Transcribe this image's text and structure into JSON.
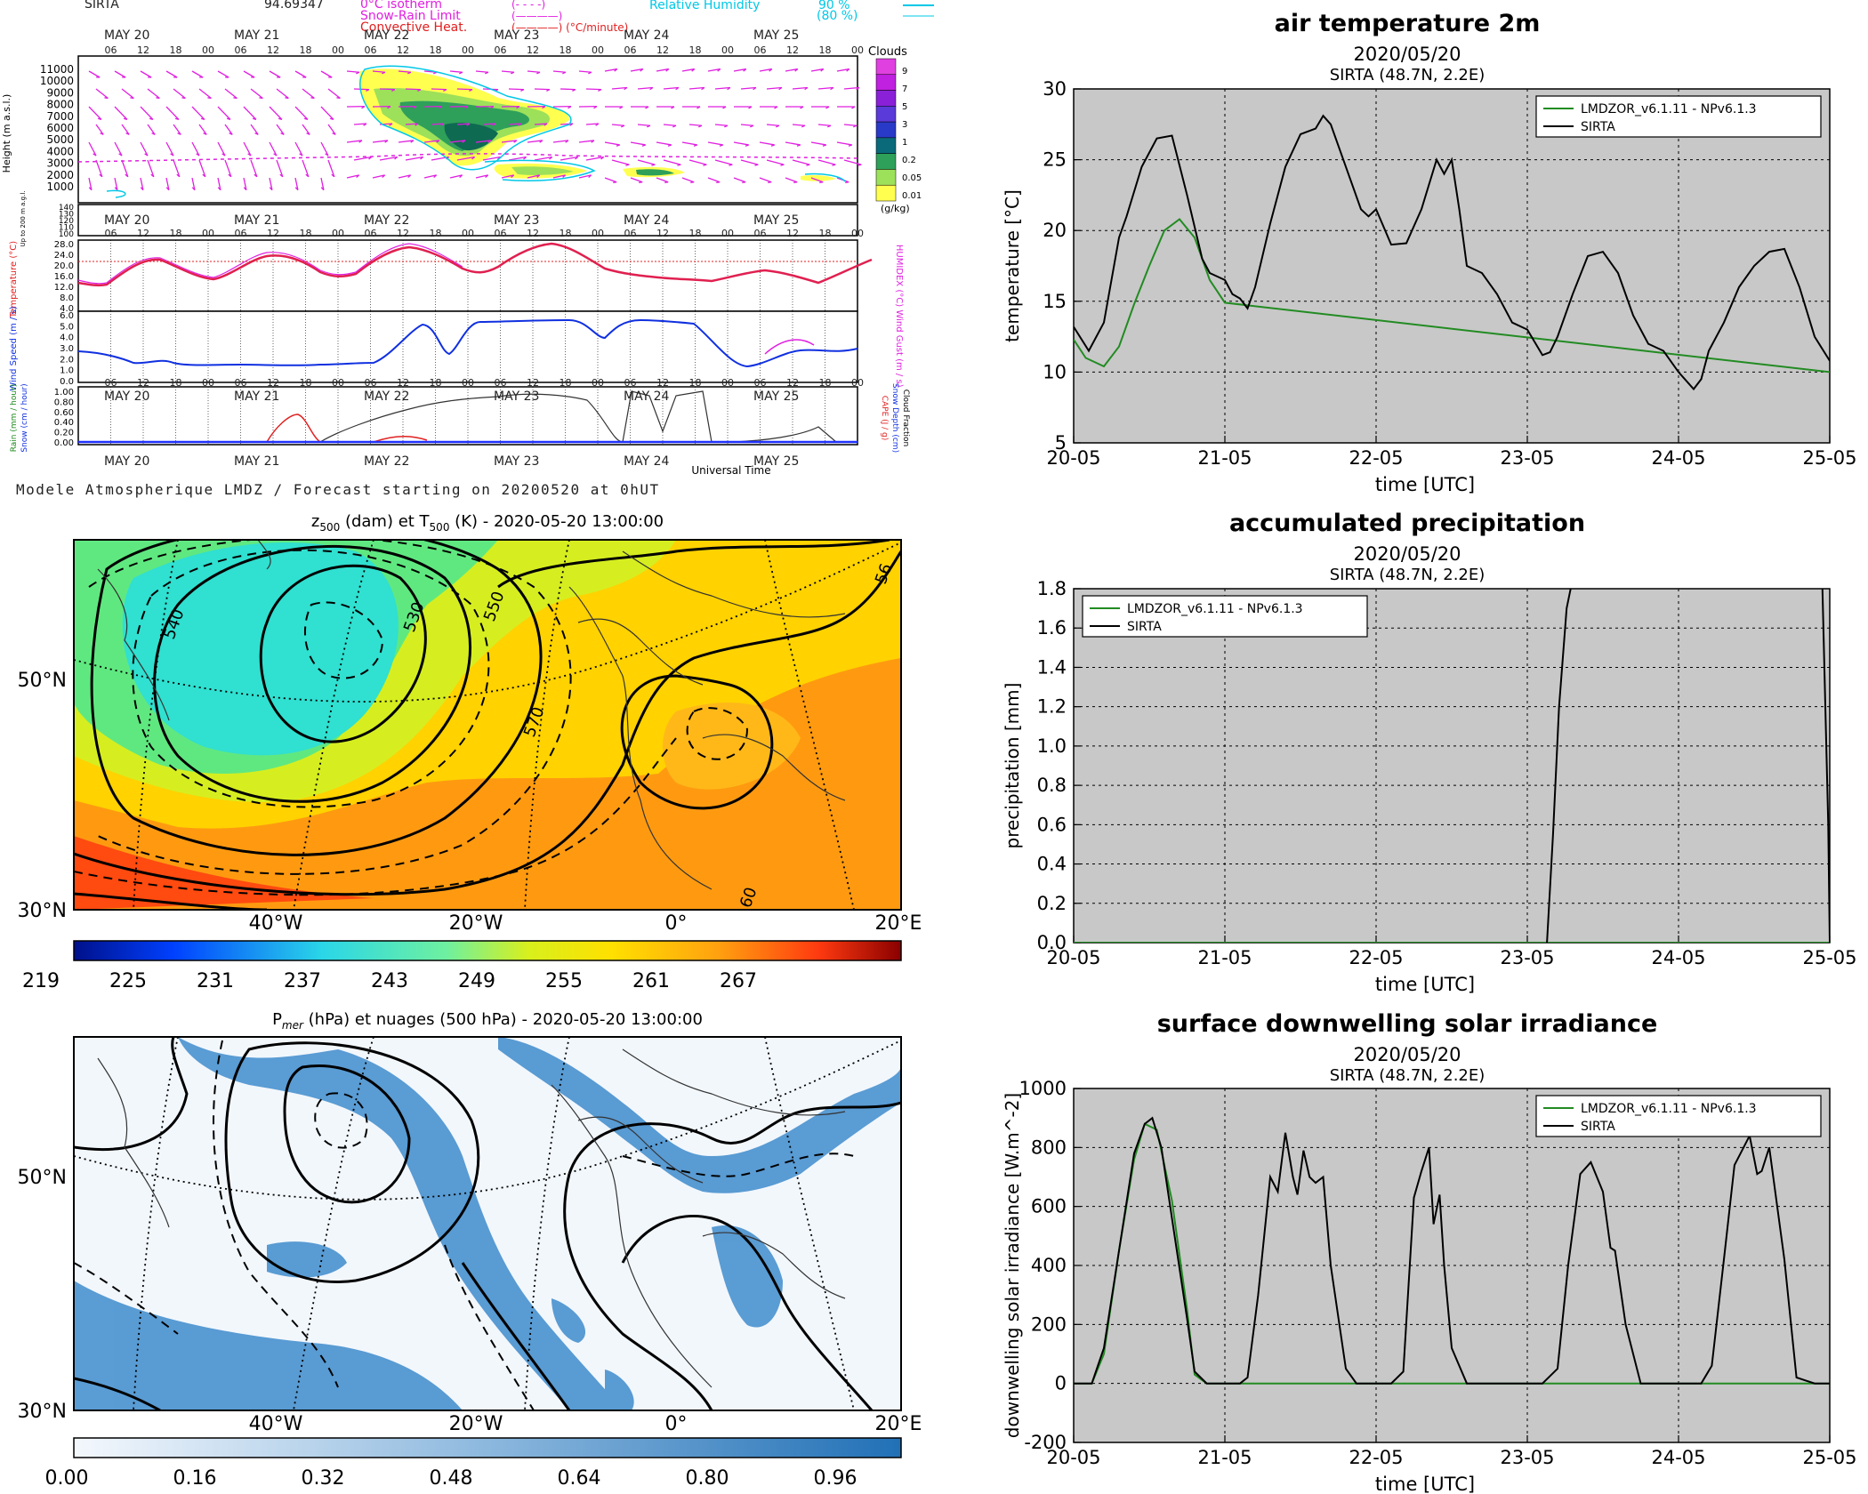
{
  "meteogram": {
    "station": "SIRTA",
    "station_value": "94.69347",
    "legend_left": [
      {
        "label": "0°C isotherm",
        "sample": "(- - - -)",
        "color": "#e020e0"
      },
      {
        "label": "Snow-Rain Limit",
        "sample": "(————)",
        "color": "#e020e0"
      },
      {
        "label": "Convective Heat.",
        "sample": "(————) (°C/minute)",
        "color": "#e02020"
      }
    ],
    "legend_right": [
      {
        "label": "Relative Humidity",
        "value1": "90 %",
        "value2": "(80 %)",
        "color": "#00c8e6"
      }
    ],
    "day_labels": [
      "MAY 20",
      "MAY 21",
      "MAY 22",
      "MAY 23",
      "MAY 24",
      "MAY 25"
    ],
    "hour_labels": [
      "06",
      "12",
      "18",
      "00"
    ],
    "height_axis_label": "Height (m a.s.l.)",
    "height_ticks": [
      "11000",
      "10000",
      "9000",
      "8000",
      "7000",
      "6000",
      "5000",
      "4000",
      "3000",
      "2000",
      "1000"
    ],
    "low_axis_label": "Up to 200 m a.g.l.",
    "low_ticks": [
      "140",
      "130",
      "120",
      "110",
      "100"
    ],
    "clouds_label": "Clouds",
    "cloud_scale": [
      "9",
      "7",
      "5",
      "3",
      "1",
      "0.2",
      "0.05",
      "0.01"
    ],
    "cloud_unit": "(g/kg)",
    "temp_axis_label": "Temperature (°C)",
    "temp_right_label": "HUMIDEX (°C)",
    "temp_ticks": [
      "28.0",
      "24.0",
      "20.0",
      "16.0",
      "12.0",
      "8.0",
      "4.0"
    ],
    "wind_axis_label": "Wind Speed (m / s)",
    "wind_right_label": "Wind Gust (m / s)",
    "wind_ticks": [
      "6.0",
      "5.0",
      "4.0",
      "3.0",
      "2.0",
      "1.0",
      "0.0"
    ],
    "rain_axis_label": "Rain (mm / hour)",
    "snow_axis_label": "Snow (cm / hour)",
    "rain_right_labels": [
      "CAPE (J / g)",
      "Snow Depth (cm)",
      "Cloud Fraction"
    ],
    "rain_ticks": [
      "1.00",
      "0.80",
      "0.60",
      "0.40",
      "0.20",
      "0.00"
    ],
    "x_axis_label": "Universal Time",
    "caption": "Modele Atmospherique LMDZ / Forecast starting on 20200520 at 0hUT"
  },
  "map_z500": {
    "title_prefix": "z",
    "title_sub": "500",
    "title_mid": " (dam) et T",
    "title_sub2": "500",
    "title_suffix": " (K) - 2020-05-20 13:00:00",
    "lat_labels": [
      "50°N",
      "30°N"
    ],
    "lon_labels": [
      "40°W",
      "20°W",
      "0°",
      "20°E"
    ],
    "contour_labels": [
      "540",
      "530",
      "550",
      "570",
      "56",
      "60"
    ],
    "colorbar_ticks": [
      "219",
      "225",
      "231",
      "237",
      "243",
      "249",
      "255",
      "261",
      "267"
    ]
  },
  "map_pmer": {
    "title_prefix": "P",
    "title_sub": "mer",
    "title_suffix": " (hPa) et nuages (500 hPa) - 2020-05-20 13:00:00",
    "lat_labels": [
      "50°N",
      "30°N"
    ],
    "lon_labels": [
      "40°W",
      "20°W",
      "0°",
      "20°E"
    ],
    "colorbar_ticks": [
      "0.00",
      "0.16",
      "0.32",
      "0.48",
      "0.64",
      "0.80",
      "0.96"
    ]
  },
  "chart_data": [
    {
      "type": "line",
      "title": "air temperature 2m",
      "subtitle1": "2020/05/20",
      "subtitle2": "SIRTA (48.7N, 2.2E)",
      "xlabel": "time [UTC]",
      "ylabel": "temperature [°C]",
      "x_ticks": [
        "20-05",
        "21-05",
        "22-05",
        "23-05",
        "24-05",
        "25-05"
      ],
      "xlim": [
        0,
        5
      ],
      "ylim": [
        5,
        30
      ],
      "y_ticks": [
        "5",
        "10",
        "15",
        "20",
        "25",
        "30"
      ],
      "grid": true,
      "legend_position": "top-right",
      "series": [
        {
          "name": "LMDZOR_v6.1.11 - NPv6.1.3",
          "color": "#228b22",
          "x": [
            0,
            0.08,
            0.2,
            0.3,
            0.4,
            0.5,
            0.6,
            0.7,
            0.8,
            0.9,
            1.0,
            5.0
          ],
          "y": [
            12.3,
            11.0,
            10.4,
            11.8,
            14.8,
            17.5,
            20.0,
            20.8,
            19.5,
            16.5,
            14.9,
            10.0
          ]
        },
        {
          "name": "SIRTA",
          "color": "#000000",
          "x": [
            0,
            0.1,
            0.2,
            0.3,
            0.35,
            0.45,
            0.55,
            0.65,
            0.75,
            0.85,
            0.9,
            1.0,
            1.05,
            1.1,
            1.15,
            1.2,
            1.3,
            1.4,
            1.5,
            1.6,
            1.65,
            1.7,
            1.8,
            1.9,
            1.95,
            2.0,
            2.1,
            2.2,
            2.3,
            2.4,
            2.45,
            2.5,
            2.55,
            2.6,
            2.7,
            2.8,
            2.9,
            3.0,
            3.1,
            3.15,
            3.2,
            3.3,
            3.4,
            3.5,
            3.6,
            3.7,
            3.8,
            3.9,
            4.0,
            4.1,
            4.15,
            4.2,
            4.3,
            4.4,
            4.5,
            4.6,
            4.7,
            4.8,
            4.9,
            5.0
          ],
          "y": [
            13.2,
            11.5,
            13.5,
            19.5,
            21.0,
            24.5,
            26.5,
            26.7,
            22.5,
            18.0,
            17.0,
            16.5,
            15.5,
            15.2,
            14.5,
            16.0,
            20.5,
            24.5,
            26.8,
            27.2,
            28.1,
            27.5,
            24.5,
            21.5,
            21.0,
            21.5,
            19.0,
            19.1,
            21.5,
            25.0,
            24.0,
            25.0,
            21.5,
            17.5,
            17.0,
            15.5,
            13.5,
            13.0,
            11.2,
            11.4,
            12.5,
            15.5,
            18.2,
            18.5,
            17.0,
            14.0,
            12.0,
            11.5,
            10.0,
            8.8,
            9.5,
            11.5,
            13.5,
            16.0,
            17.5,
            18.5,
            18.7,
            16.0,
            12.5,
            10.8
          ]
        }
      ]
    },
    {
      "type": "line",
      "title": "accumulated precipitation",
      "subtitle1": "2020/05/20",
      "subtitle2": "SIRTA (48.7N, 2.2E)",
      "xlabel": "time [UTC]",
      "ylabel": "precipitation [mm]",
      "x_ticks": [
        "20-05",
        "21-05",
        "22-05",
        "23-05",
        "24-05",
        "25-05"
      ],
      "xlim": [
        0,
        5
      ],
      "ylim": [
        0,
        1.8
      ],
      "y_ticks": [
        "0.0",
        "0.2",
        "0.4",
        "0.6",
        "0.8",
        "1.0",
        "1.2",
        "1.4",
        "1.6",
        "1.8"
      ],
      "grid": true,
      "legend_position": "top-left",
      "series": [
        {
          "name": "LMDZOR_v6.1.11 - NPv6.1.3",
          "color": "#228b22",
          "x": [
            0,
            5.0
          ],
          "y": [
            0.0,
            0.0
          ]
        },
        {
          "name": "SIRTA",
          "color": "#000000",
          "x": [
            3.13,
            3.17,
            3.21,
            3.26,
            3.3
          ],
          "y": [
            0.0,
            0.55,
            1.2,
            1.7,
            1.85
          ]
        },
        {
          "name": "",
          "color": "#000000",
          "x": [
            4.95,
            4.99,
            5.0
          ],
          "y": [
            1.85,
            0.6,
            0.0
          ]
        }
      ]
    },
    {
      "type": "line",
      "title": "surface downwelling solar irradiance",
      "subtitle1": "2020/05/20",
      "subtitle2": "SIRTA (48.7N, 2.2E)",
      "xlabel": "time [UTC]",
      "ylabel": "downwelling solar irradiance [W.m^-2]",
      "x_ticks": [
        "20-05",
        "21-05",
        "22-05",
        "23-05",
        "24-05",
        "25-05"
      ],
      "xlim": [
        0,
        5
      ],
      "ylim": [
        -200,
        1000
      ],
      "y_ticks": [
        "-200",
        "0",
        "200",
        "400",
        "600",
        "800",
        "1000"
      ],
      "grid": true,
      "legend_position": "top-right",
      "series": [
        {
          "name": "LMDZOR_v6.1.11 - NPv6.1.3",
          "color": "#228b22",
          "x": [
            0,
            0.12,
            0.2,
            0.3,
            0.4,
            0.47,
            0.55,
            0.65,
            0.75,
            0.8,
            0.88,
            5.0
          ],
          "y": [
            0,
            0,
            100,
            450,
            760,
            880,
            860,
            620,
            250,
            30,
            0,
            0
          ]
        },
        {
          "name": "SIRTA",
          "color": "#000000",
          "x": [
            0,
            0.12,
            0.2,
            0.3,
            0.4,
            0.47,
            0.52,
            0.58,
            0.65,
            0.75,
            0.8,
            0.88,
            1.0,
            1.1,
            1.15,
            1.22,
            1.3,
            1.35,
            1.4,
            1.45,
            1.48,
            1.52,
            1.56,
            1.6,
            1.65,
            1.7,
            1.8,
            1.87,
            2.0,
            2.1,
            2.18,
            2.25,
            2.3,
            2.35,
            2.38,
            2.42,
            2.45,
            2.5,
            2.6,
            2.7,
            2.8,
            2.95,
            3.1,
            3.2,
            3.27,
            3.35,
            3.42,
            3.5,
            3.55,
            3.58,
            3.65,
            3.75,
            3.85,
            4.0,
            4.15,
            4.22,
            4.3,
            4.37,
            4.42,
            4.47,
            4.52,
            4.55,
            4.6,
            4.7,
            4.78,
            4.9,
            5.0
          ],
          "y": [
            0,
            0,
            120,
            450,
            780,
            880,
            900,
            800,
            560,
            220,
            40,
            0,
            0,
            0,
            20,
            300,
            700,
            650,
            850,
            700,
            640,
            790,
            700,
            680,
            700,
            400,
            50,
            0,
            0,
            0,
            40,
            630,
            720,
            800,
            540,
            640,
            400,
            120,
            0,
            0,
            0,
            0,
            0,
            50,
            400,
            710,
            750,
            650,
            460,
            450,
            200,
            0,
            0,
            0,
            0,
            60,
            420,
            740,
            790,
            840,
            710,
            720,
            800,
            420,
            20,
            0,
            0
          ]
        }
      ]
    }
  ]
}
